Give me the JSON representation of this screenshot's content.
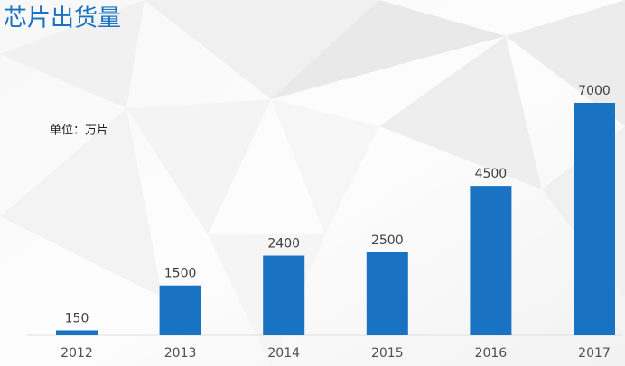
{
  "chart_data": {
    "type": "bar",
    "title": "芯片出货量",
    "annotation": "单位：万片",
    "categories": [
      "2012",
      "2013",
      "2014",
      "2015",
      "2016",
      "2017"
    ],
    "values": [
      150,
      1500,
      2400,
      2500,
      4500,
      7000
    ],
    "color": "#1a72c2"
  }
}
